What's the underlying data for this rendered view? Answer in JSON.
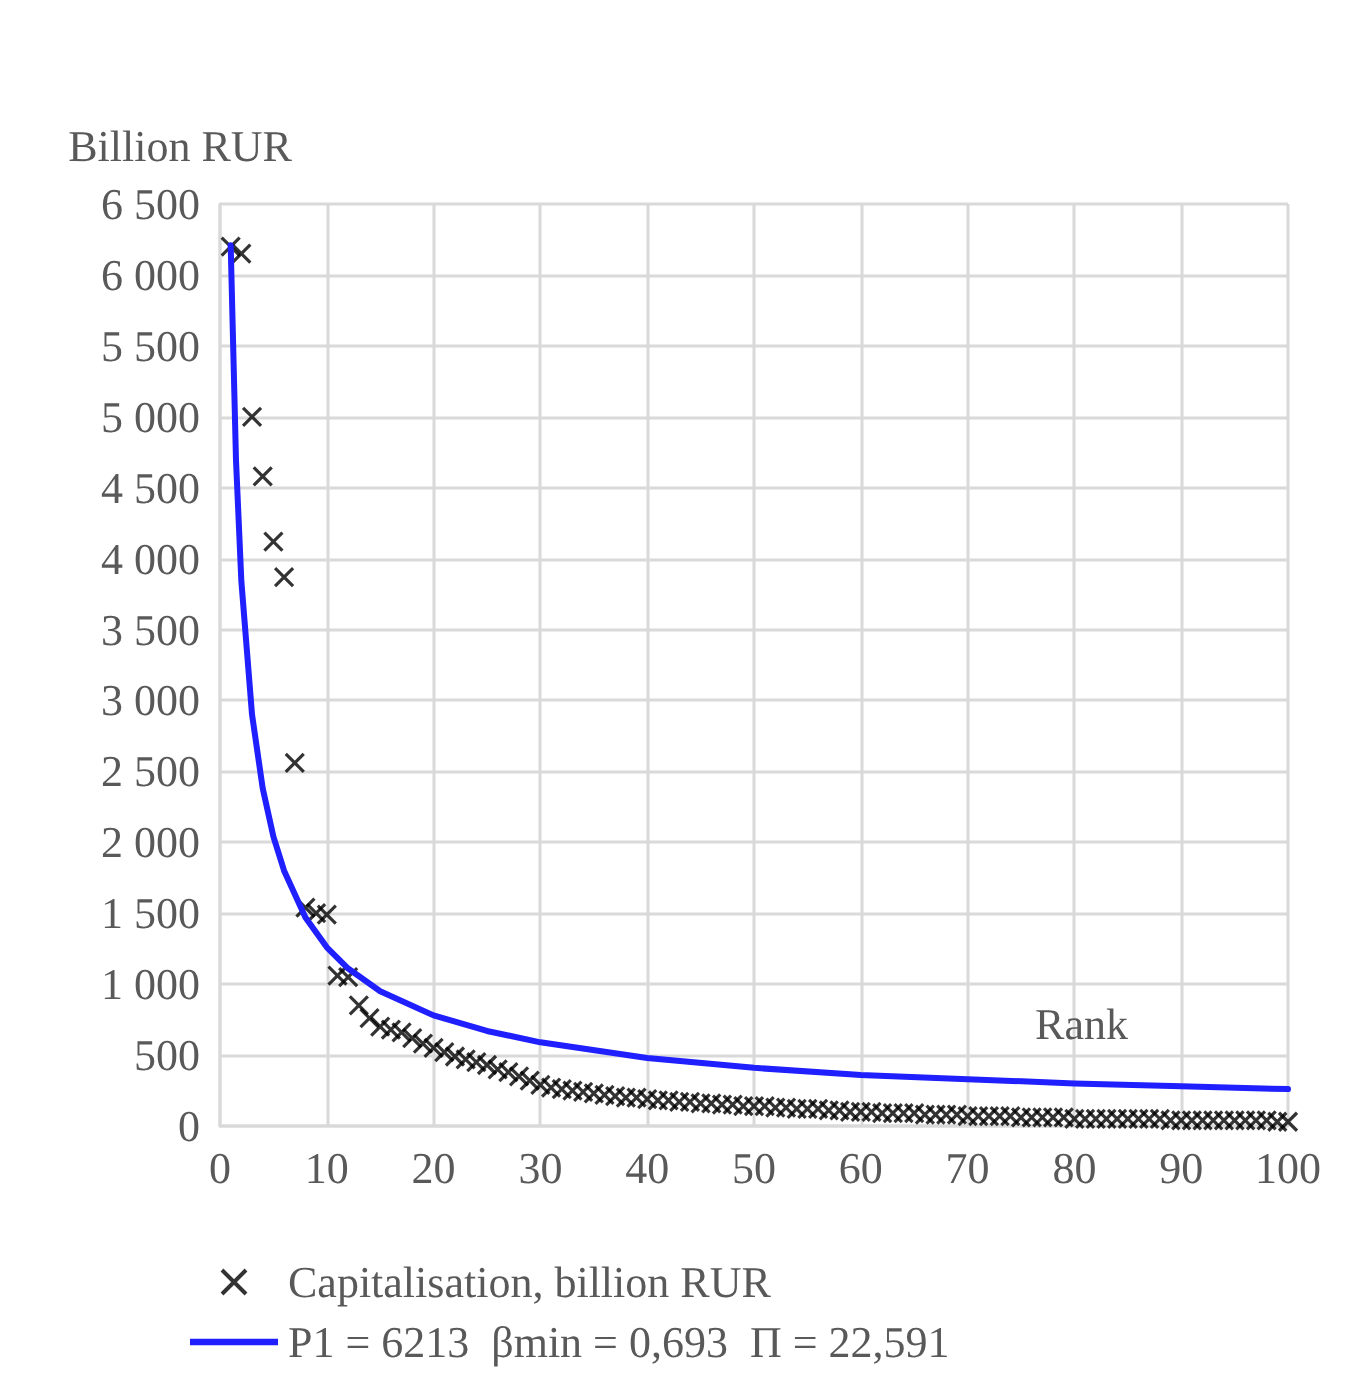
{
  "chart_data": {
    "type": "scatter",
    "xlabel": "Rank",
    "ylabel": "Billion RUR",
    "xlim": [
      0,
      100
    ],
    "xticks": [
      0,
      10,
      20,
      30,
      40,
      50,
      60,
      70,
      80,
      90,
      100
    ],
    "ylim": [
      0,
      6500
    ],
    "yticks": [
      0,
      500,
      {
        "value": 1000,
        "label": "1 000"
      },
      {
        "value": 1500,
        "label": "1 500"
      },
      {
        "value": 2000,
        "label": "2 000"
      },
      {
        "value": 2500,
        "label": "2 500"
      },
      {
        "value": 3000,
        "label": "3 000"
      },
      {
        "value": 3500,
        "label": "3 500"
      },
      {
        "value": 4000,
        "label": "4 000"
      },
      {
        "value": 4500,
        "label": "4 500"
      },
      {
        "value": 5000,
        "label": "5 000"
      },
      {
        "value": 5500,
        "label": "5 500"
      },
      {
        "value": 6000,
        "label": "6 000"
      },
      {
        "value": 6500,
        "label": "6 500"
      }
    ],
    "grid": true,
    "legend": "bottom",
    "series": [
      {
        "name": "Capitalisation, billion RUR",
        "marker": "cross",
        "color": "#000000",
        "x": [
          1,
          2,
          3,
          4,
          5,
          6,
          7,
          8,
          9,
          10,
          11,
          12,
          13,
          14,
          15,
          16,
          17,
          18,
          19,
          20,
          21,
          22,
          23,
          24,
          25,
          26,
          27,
          28,
          29,
          30,
          31,
          32,
          33,
          34,
          35,
          36,
          37,
          38,
          39,
          40,
          41,
          42,
          43,
          44,
          45,
          46,
          47,
          48,
          49,
          50,
          51,
          52,
          53,
          54,
          55,
          56,
          57,
          58,
          59,
          60,
          61,
          62,
          63,
          64,
          65,
          66,
          67,
          68,
          69,
          70,
          71,
          72,
          73,
          74,
          75,
          76,
          77,
          78,
          79,
          80,
          81,
          82,
          83,
          84,
          85,
          86,
          87,
          88,
          89,
          90,
          91,
          92,
          93,
          94,
          95,
          96,
          97,
          98,
          99,
          100
        ],
        "values": [
          6200,
          6150,
          5000,
          4580,
          4120,
          3870,
          2560,
          1540,
          1500,
          1490,
          1060,
          1050,
          850,
          760,
          700,
          680,
          660,
          620,
          580,
          550,
          520,
          490,
          470,
          450,
          430,
          400,
          380,
          350,
          320,
          290,
          270,
          260,
          250,
          240,
          230,
          220,
          210,
          200,
          200,
          190,
          180,
          180,
          170,
          170,
          160,
          160,
          150,
          150,
          140,
          140,
          140,
          130,
          130,
          120,
          120,
          120,
          110,
          110,
          100,
          100,
          100,
          90,
          90,
          90,
          90,
          80,
          80,
          80,
          80,
          70,
          70,
          70,
          70,
          70,
          60,
          60,
          60,
          60,
          60,
          50,
          50,
          50,
          50,
          50,
          50,
          50,
          50,
          50,
          40,
          40,
          40,
          40,
          40,
          40,
          40,
          40,
          40,
          40,
          30,
          30
        ]
      },
      {
        "name": "P1 = 6213  βmin = 0,693  Π = 22,591",
        "type": "line",
        "marker": "none",
        "line_style": "solid",
        "color": "#1f1fff",
        "x": [
          1,
          1.5,
          2,
          3,
          4,
          5,
          6,
          8,
          10,
          12,
          15,
          20,
          25,
          30,
          40,
          50,
          60,
          70,
          80,
          90,
          100
        ],
        "values": [
          6210,
          4690,
          3840,
          2900,
          2380,
          2040,
          1800,
          1470,
          1260,
          1110,
          950,
          780,
          670,
          590,
          480,
          410,
          360,
          330,
          300,
          280,
          260
        ]
      }
    ]
  }
}
